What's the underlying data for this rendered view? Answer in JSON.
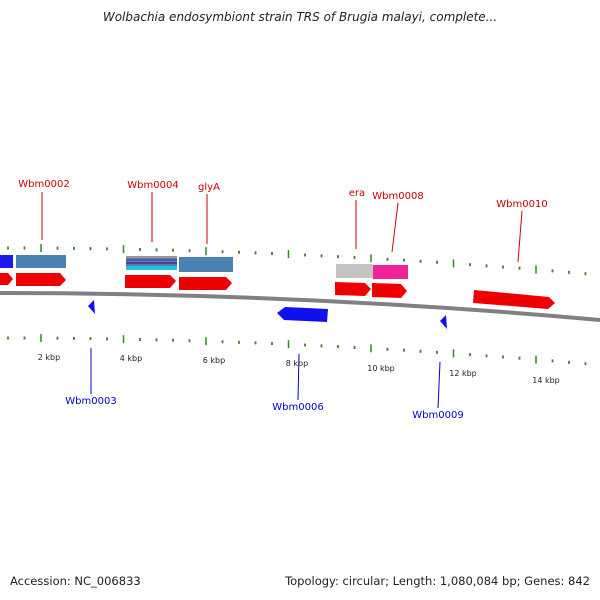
{
  "title": "Wolbachia endosymbiont strain TRS of Brugia malayi, complete...",
  "footer": {
    "accession": "Accession: NC_006833",
    "summary": "Topology: circular; Length: 1,080,084 bp; Genes: 842"
  },
  "colors": {
    "backbone": "#7d7d7d",
    "tick": "#2e8b1e",
    "label_forward": "#cc0000",
    "label_reverse": "#0000cc",
    "gene_forward": "#ee0000",
    "gene_reverse": "#0000ee",
    "feature_steel": "#4a82b4",
    "feature_grey": "#c4c4c4",
    "feature_pink": "#ee2299"
  },
  "scale_labels": [
    "2 kbp",
    "4 kbp",
    "6 kbp",
    "8 kbp",
    "10 kbp",
    "12 kbp",
    "14 kbp"
  ],
  "gene_labels_top": [
    "Wbm0002",
    "Wbm0004",
    "glyA",
    "era",
    "Wbm0008",
    "Wbm0010"
  ],
  "gene_labels_bottom": [
    "Wbm0003",
    "Wbm0006",
    "Wbm0009"
  ]
}
